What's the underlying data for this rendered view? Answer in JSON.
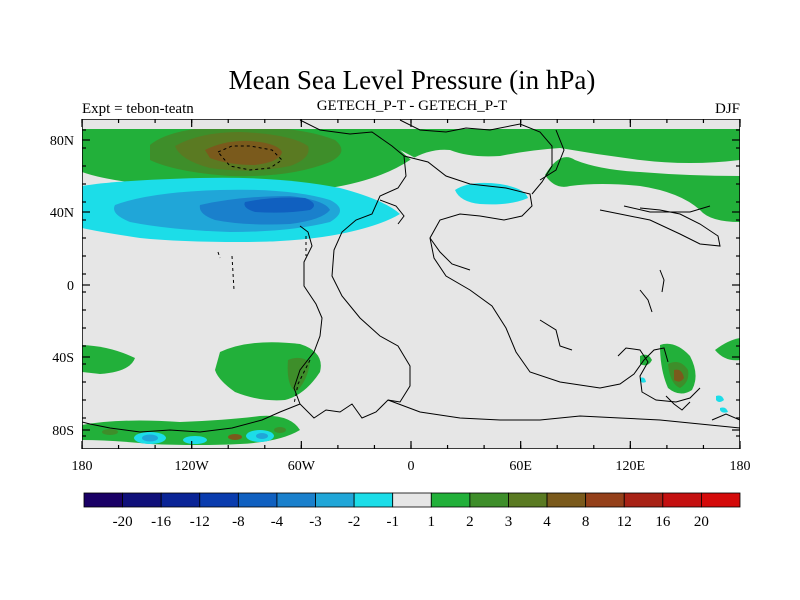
{
  "title": "Mean Sea Level Pressure (in hPa)",
  "subtitle_left": "Expt = tebon-teatn",
  "subtitle_center": "GETECH_P-T - GETECH_P-T",
  "subtitle_right": "DJF",
  "lat_labels": [
    "80N",
    "40N",
    "0",
    "40S",
    "80S"
  ],
  "lon_labels": [
    "180",
    "120W",
    "60W",
    "0",
    "60E",
    "120E",
    "180"
  ],
  "colorbar": {
    "labels": [
      "-20",
      "-16",
      "-12",
      "-8",
      "-4",
      "-3",
      "-2",
      "-1",
      "1",
      "2",
      "3",
      "4",
      "8",
      "12",
      "16",
      "20"
    ],
    "colors": [
      "#1a0066",
      "#10107a",
      "#0a2496",
      "#0a3cae",
      "#1060c0",
      "#1a80cc",
      "#20a6d8",
      "#1cdde8",
      "#e6e6e6",
      "#22b03a",
      "#3e8e2a",
      "#5a7a22",
      "#7a5a1c",
      "#94401a",
      "#a82216",
      "#c41010",
      "#d40a0a"
    ]
  },
  "colors": {
    "land_bg": "#e6e6e6",
    "coast": "#000000"
  }
}
